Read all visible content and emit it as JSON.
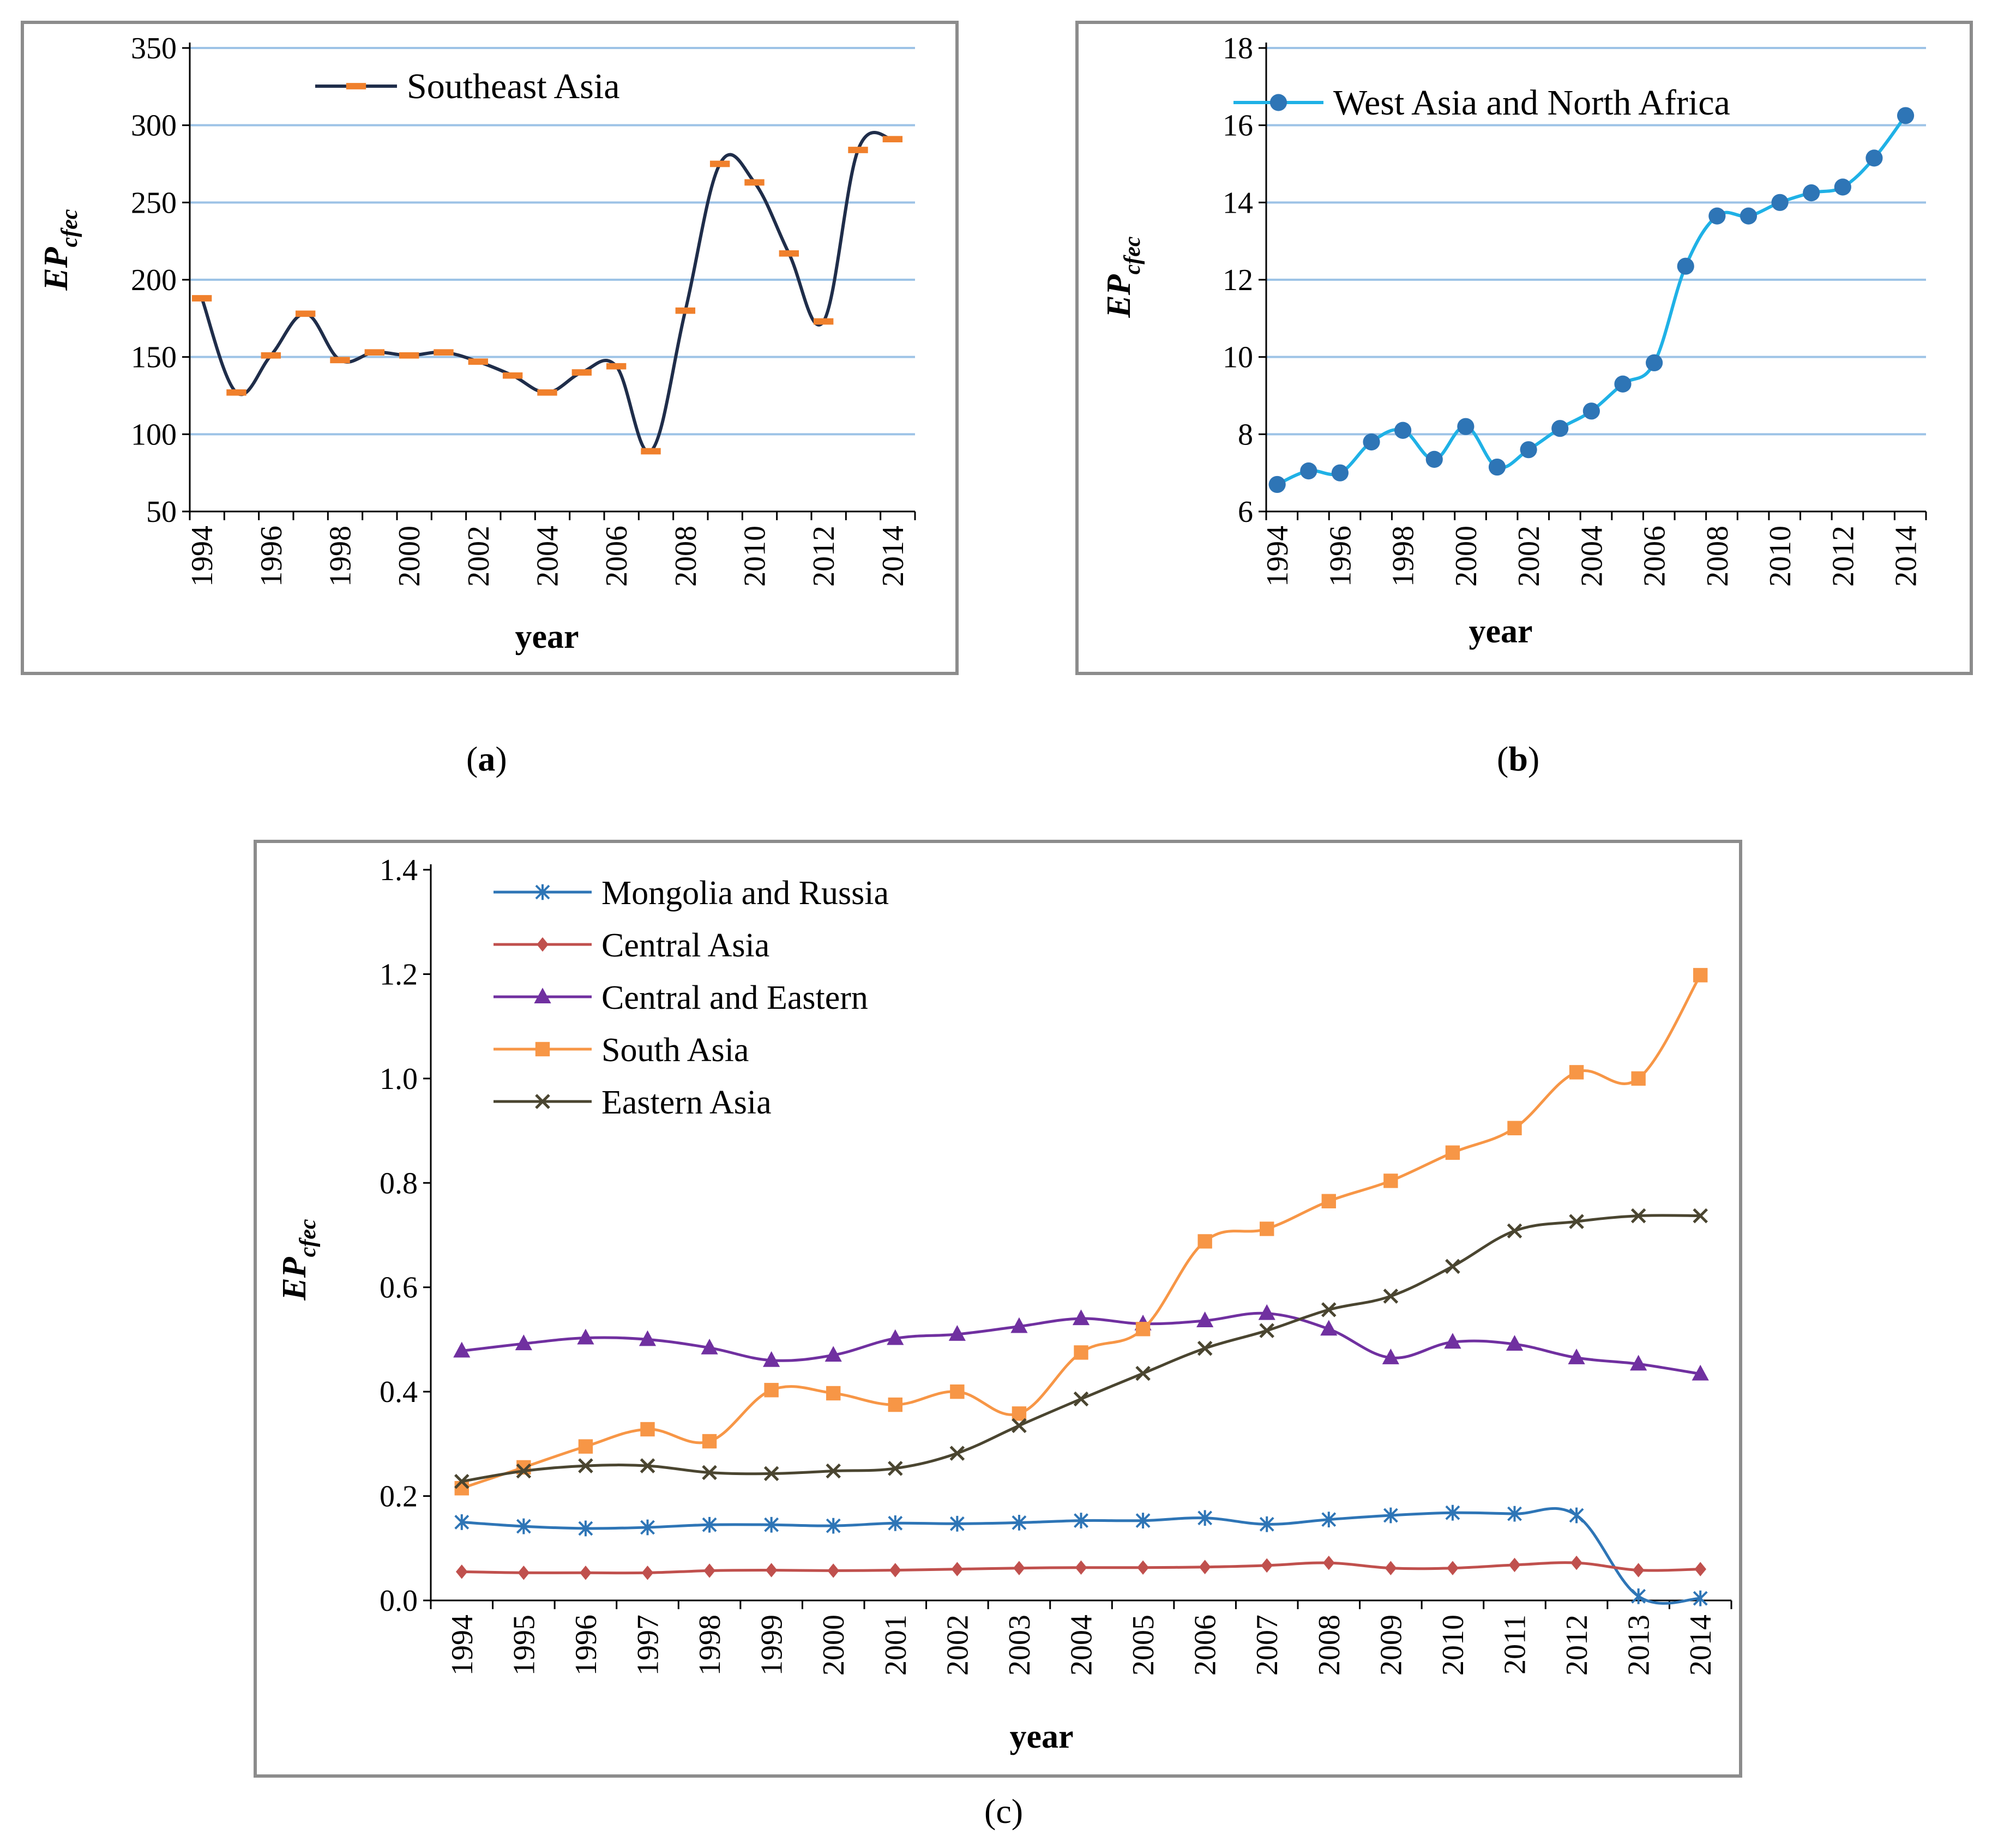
{
  "panels": [
    {
      "id": "a",
      "label": "a"
    },
    {
      "id": "b",
      "label": "b"
    },
    {
      "id": "c",
      "label": "c"
    }
  ],
  "chart_data": [
    {
      "id": "a",
      "type": "line",
      "title": "",
      "xlabel": "year",
      "ylabel_main": "EP",
      "ylabel_sub": "cfec",
      "x": [
        1994,
        1995,
        1996,
        1997,
        1998,
        1999,
        2000,
        2001,
        2002,
        2003,
        2004,
        2005,
        2006,
        2007,
        2008,
        2009,
        2010,
        2011,
        2012,
        2013,
        2014
      ],
      "x_tick_labels": [
        "1994",
        "1996",
        "1998",
        "2000",
        "2002",
        "2004",
        "2006",
        "2008",
        "2010",
        "2012",
        "2014"
      ],
      "ylim": [
        50,
        350
      ],
      "y_ticks": [
        50,
        100,
        150,
        200,
        250,
        300,
        350
      ],
      "grid": true,
      "legend_position": "top-center",
      "series": [
        {
          "name": "Southeast Asia",
          "color": "#1f2d4a",
          "marker": "dash",
          "marker_color": "#f0802c",
          "values": [
            188,
            127,
            151,
            178,
            148,
            153,
            151,
            153,
            147,
            138,
            127,
            140,
            144,
            89,
            180,
            275,
            263,
            217,
            173,
            284,
            291
          ]
        }
      ]
    },
    {
      "id": "b",
      "type": "line",
      "title": "",
      "xlabel": "year",
      "ylabel_main": "EP",
      "ylabel_sub": "cfec",
      "x": [
        1994,
        1995,
        1996,
        1997,
        1998,
        1999,
        2000,
        2001,
        2002,
        2003,
        2004,
        2005,
        2006,
        2007,
        2008,
        2009,
        2010,
        2011,
        2012,
        2013,
        2014
      ],
      "x_tick_labels": [
        "1994",
        "1996",
        "1998",
        "2000",
        "2002",
        "2004",
        "2006",
        "2008",
        "2010",
        "2012",
        "2014"
      ],
      "ylim": [
        6,
        18
      ],
      "y_ticks": [
        6,
        8,
        10,
        12,
        14,
        16,
        18
      ],
      "grid": true,
      "legend_position": "top-center",
      "series": [
        {
          "name": "West Asia and North Africa",
          "color": "#1fb1e6",
          "marker": "circle",
          "marker_color": "#2e75b6",
          "values": [
            6.7,
            7.05,
            7.0,
            7.8,
            8.1,
            7.35,
            8.2,
            7.15,
            7.6,
            8.15,
            8.6,
            9.3,
            9.85,
            12.35,
            13.65,
            13.65,
            14.0,
            14.25,
            14.4,
            15.15,
            16.25
          ]
        }
      ]
    },
    {
      "id": "c",
      "type": "line",
      "title": "",
      "xlabel": "year",
      "ylabel_main": "EP",
      "ylabel_sub": "cfec",
      "x": [
        1994,
        1995,
        1996,
        1997,
        1998,
        1999,
        2000,
        2001,
        2002,
        2003,
        2004,
        2005,
        2006,
        2007,
        2008,
        2009,
        2010,
        2011,
        2012,
        2013,
        2014
      ],
      "x_tick_labels": [
        "1994",
        "1995",
        "1996",
        "1997",
        "1998",
        "1999",
        "2000",
        "2001",
        "2002",
        "2003",
        "2004",
        "2005",
        "2006",
        "2007",
        "2008",
        "2009",
        "2010",
        "2011",
        "2012",
        "2013",
        "2014"
      ],
      "ylim": [
        0.0,
        1.4
      ],
      "y_ticks": [
        "0.0",
        "0.2",
        "0.4",
        "0.6",
        "0.8",
        "1.0",
        "1.2",
        "1.4"
      ],
      "grid": false,
      "legend_position": "top-left",
      "series": [
        {
          "name": "Mongolia and Russia",
          "color": "#2e75b6",
          "marker": "star",
          "values": [
            0.15,
            0.142,
            0.138,
            0.14,
            0.145,
            0.145,
            0.143,
            0.148,
            0.147,
            0.149,
            0.153,
            0.153,
            0.158,
            0.146,
            0.155,
            0.163,
            0.168,
            0.166,
            0.163,
            0.008,
            0.004
          ]
        },
        {
          "name": "Central Asia",
          "color": "#c0504d",
          "marker": "diamond",
          "values": [
            0.055,
            0.053,
            0.053,
            0.053,
            0.057,
            0.058,
            0.057,
            0.058,
            0.06,
            0.062,
            0.063,
            0.063,
            0.064,
            0.067,
            0.072,
            0.062,
            0.062,
            0.068,
            0.072,
            0.058,
            0.06
          ]
        },
        {
          "name": "Central and Eastern",
          "color": "#7030a0",
          "marker": "triangle",
          "values": [
            0.478,
            0.492,
            0.503,
            0.5,
            0.484,
            0.46,
            0.47,
            0.502,
            0.51,
            0.525,
            0.54,
            0.53,
            0.536,
            0.55,
            0.52,
            0.465,
            0.495,
            0.491,
            0.465,
            0.453,
            0.434
          ]
        },
        {
          "name": "South Asia",
          "color": "#f79646",
          "marker": "square",
          "values": [
            0.215,
            0.255,
            0.295,
            0.328,
            0.305,
            0.403,
            0.397,
            0.375,
            0.4,
            0.358,
            0.475,
            0.52,
            0.688,
            0.712,
            0.765,
            0.804,
            0.858,
            0.905,
            1.012,
            1.0,
            1.198
          ]
        },
        {
          "name": "Eastern Asia",
          "color": "#4a4530",
          "marker": "x",
          "values": [
            0.228,
            0.248,
            0.258,
            0.258,
            0.245,
            0.243,
            0.248,
            0.253,
            0.282,
            0.335,
            0.386,
            0.435,
            0.483,
            0.517,
            0.557,
            0.583,
            0.64,
            0.708,
            0.726,
            0.737,
            0.737
          ]
        }
      ]
    }
  ]
}
